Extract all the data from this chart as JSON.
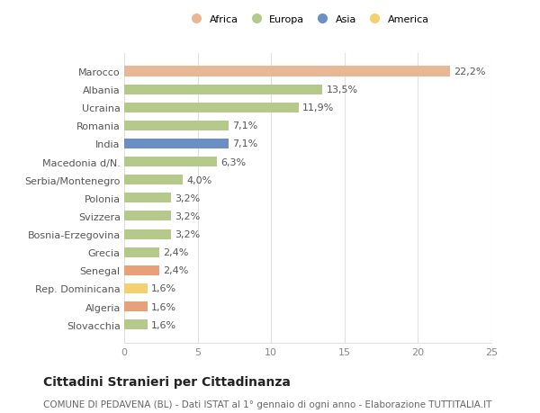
{
  "categories": [
    "Slovacchia",
    "Algeria",
    "Rep. Dominicana",
    "Senegal",
    "Grecia",
    "Bosnia-Erzegovina",
    "Svizzera",
    "Polonia",
    "Serbia/Montenegro",
    "Macedonia d/N.",
    "India",
    "Romania",
    "Ucraina",
    "Albania",
    "Marocco"
  ],
  "values": [
    1.6,
    1.6,
    1.6,
    2.4,
    2.4,
    3.2,
    3.2,
    3.2,
    4.0,
    6.3,
    7.1,
    7.1,
    11.9,
    13.5,
    22.2
  ],
  "labels": [
    "1,6%",
    "1,6%",
    "1,6%",
    "2,4%",
    "2,4%",
    "3,2%",
    "3,2%",
    "3,2%",
    "4,0%",
    "6,3%",
    "7,1%",
    "7,1%",
    "11,9%",
    "13,5%",
    "22,2%"
  ],
  "colors": [
    "#b5c98a",
    "#e8a07a",
    "#f5d070",
    "#e8a07a",
    "#b5c98a",
    "#b5c98a",
    "#b5c98a",
    "#b5c98a",
    "#b5c98a",
    "#b5c98a",
    "#6b8ec4",
    "#b5c98a",
    "#b5c98a",
    "#b5c98a",
    "#e8b896"
  ],
  "legend_labels": [
    "Africa",
    "Europa",
    "Asia",
    "America"
  ],
  "legend_colors": [
    "#e8b896",
    "#b5c98a",
    "#6b8ec4",
    "#f5d070"
  ],
  "title1": "Cittadini Stranieri per Cittadinanza",
  "title2": "COMUNE DI PEDAVENA (BL) - Dati ISTAT al 1° gennaio di ogni anno - Elaborazione TUTTITALIA.IT",
  "xlim": [
    0,
    25
  ],
  "xticks": [
    0,
    5,
    10,
    15,
    20,
    25
  ],
  "bar_height": 0.55,
  "background_color": "#ffffff",
  "grid_color": "#e0e0e0",
  "label_fontsize": 8,
  "tick_fontsize": 8,
  "title1_fontsize": 10,
  "title2_fontsize": 7.5
}
